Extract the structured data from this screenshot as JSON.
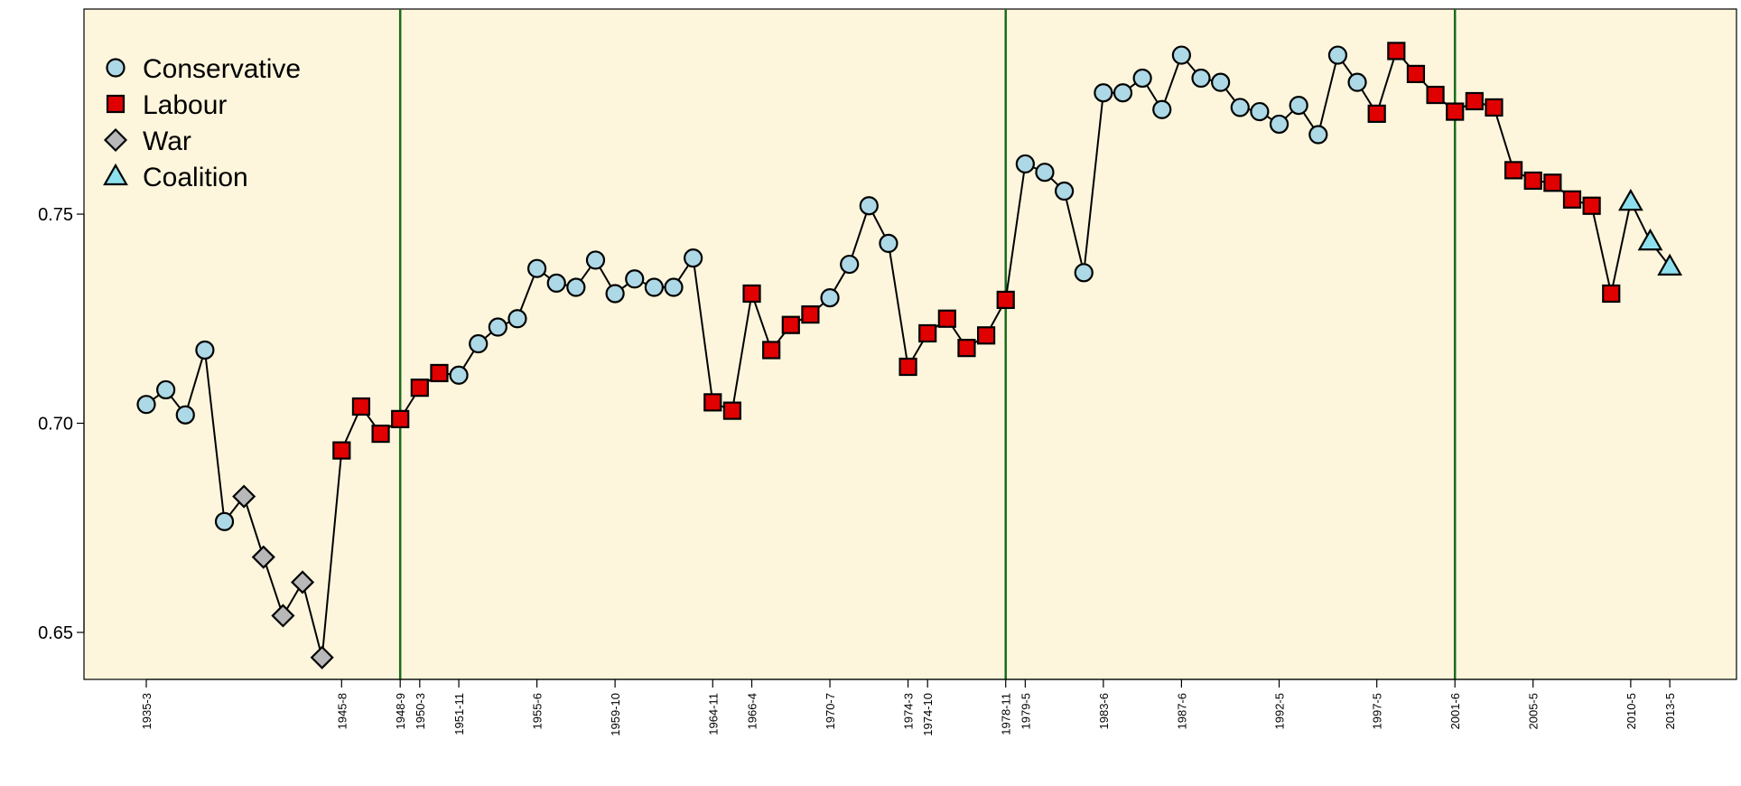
{
  "chart_data": {
    "type": "line",
    "background_color": "#fdf6dc",
    "line_color": "#000000",
    "vline_color": "#1a6b1a",
    "grid": false,
    "legend_position": "top-left",
    "marker_styles": {
      "C": {
        "shape": "circle",
        "color": "#add8e6"
      },
      "L": {
        "shape": "square",
        "color": "#e00000"
      },
      "W": {
        "shape": "diamond",
        "color": "#b8b8b8"
      },
      "K": {
        "shape": "triangle",
        "color": "#8fe0ee"
      }
    },
    "legend": [
      {
        "key": "C",
        "label": "Conservative"
      },
      {
        "key": "L",
        "label": "Labour"
      },
      {
        "key": "W",
        "label": "War"
      },
      {
        "key": "K",
        "label": "Coalition"
      }
    ],
    "y_ticks": [
      "0.65",
      "0.70",
      "0.75"
    ],
    "ylim": [
      0.638,
      0.791
    ],
    "x_tick_labels": [
      {
        "i": 0,
        "label": "1935-3"
      },
      {
        "i": 10,
        "label": "1945-8"
      },
      {
        "i": 13,
        "label": "1948-9"
      },
      {
        "i": 14,
        "label": "1950-3"
      },
      {
        "i": 16,
        "label": "1951-11"
      },
      {
        "i": 20,
        "label": "1955-6"
      },
      {
        "i": 24,
        "label": "1959-10"
      },
      {
        "i": 29,
        "label": "1964-11"
      },
      {
        "i": 31,
        "label": "1966-4"
      },
      {
        "i": 35,
        "label": "1970-7"
      },
      {
        "i": 39,
        "label": "1974-3"
      },
      {
        "i": 40,
        "label": "1974-10"
      },
      {
        "i": 44,
        "label": "1978-11"
      },
      {
        "i": 45,
        "label": "1979-5"
      },
      {
        "i": 49,
        "label": "1983-6"
      },
      {
        "i": 53,
        "label": "1987-6"
      },
      {
        "i": 58,
        "label": "1992-5"
      },
      {
        "i": 63,
        "label": "1997-5"
      },
      {
        "i": 67,
        "label": "2001-6"
      },
      {
        "i": 71,
        "label": "2005-5"
      },
      {
        "i": 76,
        "label": "2010-5"
      },
      {
        "i": 78,
        "label": "2013-5"
      }
    ],
    "vertical_lines_at": [
      13,
      44,
      67
    ],
    "points": [
      {
        "y": 0.7045,
        "t": "C"
      },
      {
        "y": 0.708,
        "t": "C"
      },
      {
        "y": 0.702,
        "t": "C"
      },
      {
        "y": 0.7175,
        "t": "C"
      },
      {
        "y": 0.6765,
        "t": "C"
      },
      {
        "y": 0.6825,
        "t": "W"
      },
      {
        "y": 0.668,
        "t": "W"
      },
      {
        "y": 0.654,
        "t": "W"
      },
      {
        "y": 0.662,
        "t": "W"
      },
      {
        "y": 0.644,
        "t": "W"
      },
      {
        "y": 0.6935,
        "t": "L"
      },
      {
        "y": 0.704,
        "t": "L"
      },
      {
        "y": 0.6975,
        "t": "L"
      },
      {
        "y": 0.701,
        "t": "L"
      },
      {
        "y": 0.7085,
        "t": "L"
      },
      {
        "y": 0.712,
        "t": "L"
      },
      {
        "y": 0.7115,
        "t": "C"
      },
      {
        "y": 0.719,
        "t": "C"
      },
      {
        "y": 0.723,
        "t": "C"
      },
      {
        "y": 0.725,
        "t": "C"
      },
      {
        "y": 0.737,
        "t": "C"
      },
      {
        "y": 0.7335,
        "t": "C"
      },
      {
        "y": 0.7325,
        "t": "C"
      },
      {
        "y": 0.739,
        "t": "C"
      },
      {
        "y": 0.731,
        "t": "C"
      },
      {
        "y": 0.7345,
        "t": "C"
      },
      {
        "y": 0.7325,
        "t": "C"
      },
      {
        "y": 0.7325,
        "t": "C"
      },
      {
        "y": 0.7395,
        "t": "C"
      },
      {
        "y": 0.705,
        "t": "L"
      },
      {
        "y": 0.703,
        "t": "L"
      },
      {
        "y": 0.731,
        "t": "L"
      },
      {
        "y": 0.7175,
        "t": "L"
      },
      {
        "y": 0.7235,
        "t": "L"
      },
      {
        "y": 0.726,
        "t": "L"
      },
      {
        "y": 0.73,
        "t": "C"
      },
      {
        "y": 0.738,
        "t": "C"
      },
      {
        "y": 0.752,
        "t": "C"
      },
      {
        "y": 0.743,
        "t": "C"
      },
      {
        "y": 0.7135,
        "t": "L"
      },
      {
        "y": 0.7215,
        "t": "L"
      },
      {
        "y": 0.725,
        "t": "L"
      },
      {
        "y": 0.718,
        "t": "L"
      },
      {
        "y": 0.721,
        "t": "L"
      },
      {
        "y": 0.7295,
        "t": "L"
      },
      {
        "y": 0.762,
        "t": "C"
      },
      {
        "y": 0.76,
        "t": "C"
      },
      {
        "y": 0.7555,
        "t": "C"
      },
      {
        "y": 0.736,
        "t": "C"
      },
      {
        "y": 0.779,
        "t": "C"
      },
      {
        "y": 0.779,
        "t": "C"
      },
      {
        "y": 0.7825,
        "t": "C"
      },
      {
        "y": 0.775,
        "t": "C"
      },
      {
        "y": 0.788,
        "t": "C"
      },
      {
        "y": 0.7825,
        "t": "C"
      },
      {
        "y": 0.7815,
        "t": "C"
      },
      {
        "y": 0.7755,
        "t": "C"
      },
      {
        "y": 0.7745,
        "t": "C"
      },
      {
        "y": 0.7715,
        "t": "C"
      },
      {
        "y": 0.776,
        "t": "C"
      },
      {
        "y": 0.769,
        "t": "C"
      },
      {
        "y": 0.788,
        "t": "C"
      },
      {
        "y": 0.7815,
        "t": "C"
      },
      {
        "y": 0.774,
        "t": "L"
      },
      {
        "y": 0.789,
        "t": "L"
      },
      {
        "y": 0.7835,
        "t": "L"
      },
      {
        "y": 0.7785,
        "t": "L"
      },
      {
        "y": 0.7745,
        "t": "L"
      },
      {
        "y": 0.777,
        "t": "L"
      },
      {
        "y": 0.7755,
        "t": "L"
      },
      {
        "y": 0.7605,
        "t": "L"
      },
      {
        "y": 0.758,
        "t": "L"
      },
      {
        "y": 0.7575,
        "t": "L"
      },
      {
        "y": 0.7535,
        "t": "L"
      },
      {
        "y": 0.752,
        "t": "L"
      },
      {
        "y": 0.731,
        "t": "L"
      },
      {
        "y": 0.753,
        "t": "K"
      },
      {
        "y": 0.7435,
        "t": "K"
      },
      {
        "y": 0.7375,
        "t": "K"
      }
    ]
  }
}
